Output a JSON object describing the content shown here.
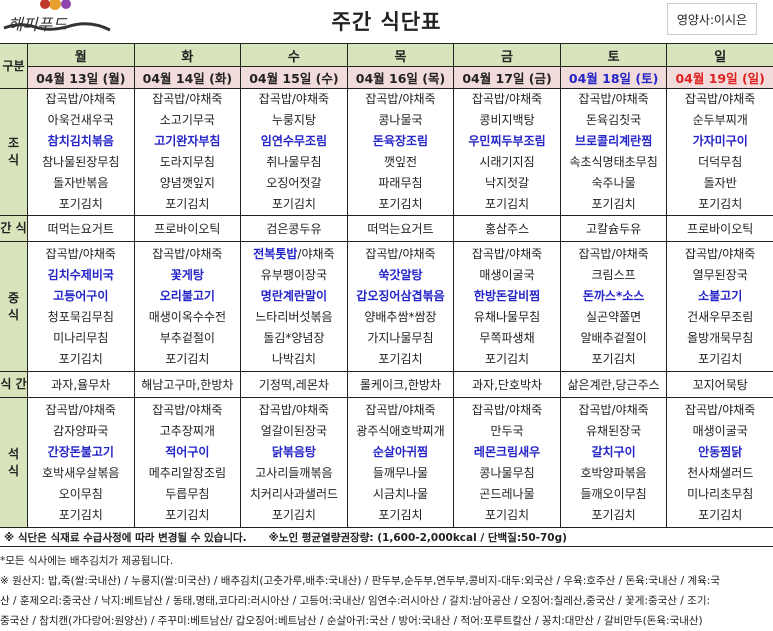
{
  "header": {
    "logo_text": "해피푸드",
    "title": "주간 식단표",
    "dietitian": "영양사:이시은"
  },
  "labels": {
    "category": "구분",
    "breakfast": "조\n식",
    "snack1": "간 식",
    "lunch": "중\n식",
    "snack2": "식 간",
    "dinner": "석\n식"
  },
  "colors": {
    "highlight": "#2525c8",
    "saturday": "#2525c8",
    "sunday": "#e02020",
    "header_bg": "#d8e4bc",
    "date_bg": "#f2dcdb"
  },
  "days": [
    {
      "day": "월",
      "date": "04월 13일 (월)"
    },
    {
      "day": "화",
      "date": "04월 14일 (화)"
    },
    {
      "day": "수",
      "date": "04월 15일 (수)"
    },
    {
      "day": "목",
      "date": "04월 16일 (목)"
    },
    {
      "day": "금",
      "date": "04월 17일 (금)"
    },
    {
      "day": "토",
      "date": "04월 18일 (토)"
    },
    {
      "day": "일",
      "date": "04월 19일 (일)"
    }
  ],
  "breakfast": [
    [
      {
        "text": "잡곡밥/야채죽"
      },
      {
        "text": "아욱건새우국"
      },
      {
        "text": "참치김치볶음",
        "bold": true
      },
      {
        "text": "참나물된장무침"
      },
      {
        "text": "돌자반볶음"
      },
      {
        "text": "포기김치"
      }
    ],
    [
      {
        "text": "잡곡밥/야채죽"
      },
      {
        "text": "소고기무국"
      },
      {
        "text": "고기완자부침",
        "bold": true
      },
      {
        "text": "도라지무침"
      },
      {
        "text": "양념깻잎지"
      },
      {
        "text": "포기김치"
      }
    ],
    [
      {
        "text": "잡곡밥/야채죽"
      },
      {
        "text": "누룽지탕"
      },
      {
        "text": "임연수무조림",
        "bold": true
      },
      {
        "text": "취나물무침"
      },
      {
        "text": "오징어젓갈"
      },
      {
        "text": "포기김치"
      }
    ],
    [
      {
        "text": "잡곡밥/야채죽"
      },
      {
        "text": "콩나물국"
      },
      {
        "text": "돈육장조림",
        "bold": true
      },
      {
        "text": "깻잎전"
      },
      {
        "text": "파래무침"
      },
      {
        "text": "포기김치"
      }
    ],
    [
      {
        "text": "잡곡밥/야채죽"
      },
      {
        "text": "콩비지백탕"
      },
      {
        "text": "우민찌두부조림",
        "bold": true
      },
      {
        "text": "시래기지짐"
      },
      {
        "text": "낙지젓갈"
      },
      {
        "text": "포기김치"
      }
    ],
    [
      {
        "text": "잡곡밥/야채죽"
      },
      {
        "text": "돈육김칫국"
      },
      {
        "text": "브로콜리계란찜",
        "bold": true
      },
      {
        "text": "속초식명태초무침"
      },
      {
        "text": "숙주나물"
      },
      {
        "text": "포기김치"
      }
    ],
    [
      {
        "text": "잡곡밥/야채죽"
      },
      {
        "text": "순두부찌개"
      },
      {
        "text": "가자미구이",
        "bold": true
      },
      {
        "text": "더덕무침"
      },
      {
        "text": "돌자반"
      },
      {
        "text": "포기김치"
      }
    ]
  ],
  "snack1": [
    "떠먹는요거트",
    "프로바이오틱",
    "검은콩두유",
    "떠먹는요거트",
    "홍삼주스",
    "고칼슘두유",
    "프로바이오틱"
  ],
  "lunch": [
    [
      {
        "text": "잡곡밥/야채죽"
      },
      {
        "text": "김치수제비국",
        "bold": true
      },
      {
        "text": "고등어구이",
        "bold": true
      },
      {
        "text": "청포묵김무침"
      },
      {
        "text": "미나리무침"
      },
      {
        "text": "포기김치"
      }
    ],
    [
      {
        "text": "잡곡밥/야채죽"
      },
      {
        "text": "꽃게탕",
        "bold": true
      },
      {
        "text": "오리불고기",
        "bold": true
      },
      {
        "text": "매생이옥수수전"
      },
      {
        "text": "부추겉절이"
      },
      {
        "text": "포기김치"
      }
    ],
    [
      {
        "text": "전복톳밥",
        "bold": true,
        "suffix": "/야채죽"
      },
      {
        "text": "유부팽이장국"
      },
      {
        "text": "명란계란말이",
        "bold": true
      },
      {
        "text": "느타리버섯볶음"
      },
      {
        "text": "돌김*양념장"
      },
      {
        "text": "나박김치"
      }
    ],
    [
      {
        "text": "잡곡밥/야채죽"
      },
      {
        "text": "쑥갓알탕",
        "bold": true
      },
      {
        "text": "갑오징어삼겹볶음",
        "bold": true
      },
      {
        "text": "양배추쌈*쌈장"
      },
      {
        "text": "가지나물무침"
      },
      {
        "text": "포기김치"
      }
    ],
    [
      {
        "text": "잡곡밥/야채죽"
      },
      {
        "text": "매생이굴국"
      },
      {
        "text": "한방돈갈비찜",
        "bold": true
      },
      {
        "text": "유채나물무침"
      },
      {
        "text": "무쪽파생채"
      },
      {
        "text": "포기김치"
      }
    ],
    [
      {
        "text": "잡곡밥/야채죽"
      },
      {
        "text": "크림스프"
      },
      {
        "text": "돈까스*소스",
        "bold": true
      },
      {
        "text": "실곤약쫄면"
      },
      {
        "text": "알배추겉절이"
      },
      {
        "text": "포기김치"
      }
    ],
    [
      {
        "text": "잡곡밥/야채죽"
      },
      {
        "text": "열무된장국"
      },
      {
        "text": "소불고기",
        "bold": true
      },
      {
        "text": "건새우무조림"
      },
      {
        "text": "올방개묵무침"
      },
      {
        "text": "포기김치"
      }
    ]
  ],
  "snack2": [
    "과자,율무차",
    "해남고구마,한방차",
    "기정떡,레몬차",
    "롤케이크,한방차",
    "과자,단호박차",
    "삶은계란,당근주스",
    "꼬지어묵탕"
  ],
  "dinner": [
    [
      {
        "text": "잡곡밥/야채죽"
      },
      {
        "text": "감자양파국"
      },
      {
        "text": "간장돈불고기",
        "bold": true
      },
      {
        "text": "호박새우살볶음"
      },
      {
        "text": "오이무침"
      },
      {
        "text": "포기김치"
      }
    ],
    [
      {
        "text": "잡곡밥/야채죽"
      },
      {
        "text": "고추장찌개"
      },
      {
        "text": "적어구이",
        "bold": true
      },
      {
        "text": "메추리알장조림"
      },
      {
        "text": "두릅무침"
      },
      {
        "text": "포기김치"
      }
    ],
    [
      {
        "text": "잡곡밥/야채죽"
      },
      {
        "text": "얼갈이된장국"
      },
      {
        "text": "닭볶음탕",
        "bold": true
      },
      {
        "text": "고사리들깨볶음"
      },
      {
        "text": "치커리사과샐러드"
      },
      {
        "text": "포기김치"
      }
    ],
    [
      {
        "text": "잡곡밥/야채죽"
      },
      {
        "text": "광주식애호박찌개"
      },
      {
        "text": "순살아귀찜",
        "bold": true
      },
      {
        "text": "들깨무나물"
      },
      {
        "text": "시금치나물"
      },
      {
        "text": "포기김치"
      }
    ],
    [
      {
        "text": "잡곡밥/야채죽"
      },
      {
        "text": "만두국"
      },
      {
        "text": "레몬크림새우",
        "bold": true
      },
      {
        "text": "콩나물무침"
      },
      {
        "text": "곤드레나물"
      },
      {
        "text": "포기김치"
      }
    ],
    [
      {
        "text": "잡곡밥/야채죽"
      },
      {
        "text": "유채된장국"
      },
      {
        "text": "갈치구이",
        "bold": true
      },
      {
        "text": "호박양파볶음"
      },
      {
        "text": "들깨오이무침"
      },
      {
        "text": "포기김치"
      }
    ],
    [
      {
        "text": "잡곡밥/야채죽"
      },
      {
        "text": "매생이굴국"
      },
      {
        "text": "안동찜닭",
        "bold": true
      },
      {
        "text": "천사채샐러드"
      },
      {
        "text": "미나리초무침"
      },
      {
        "text": "포기김치"
      }
    ]
  ],
  "note": "※ 식단은 식재료 수급사정에 따라 변경될 수 있습니다.      ※노인 평균열량권장량: (1,600-2,000kcal / 단백질:50-70g)",
  "footnotes": [
    "*모든 식사에는 배추김치가 제공됩니다.",
    "※ 원산지: 밥,죽(쌀:국내산) / 누룽지(쌀:미국산) / 배추김치(고춧가루,배추:국내산) / 판두부,순두부,연두부,콩비지-대두:외국산 / 우육:호주산 / 돈육:국내산 / 계육:국",
    "산 / 훈제오리:중국산 / 낙지:베트남산 / 동태,명태,코다리:러시아산 / 고등어:국내산/ 임연수:러시아산 / 갈치:남아공산 / 오징어:칠레산,중국산 / 꽃게:중국산 / 조기:",
    "중국산 / 참치캔(가다랑어:원양산) / 주꾸미:베트남산/ 갑오징어:베트남산 / 순살아귀:국산 / 방어:국내산 / 적어:포루트칼산 / 꽁치:대만산 / 갈비만두(돈육:국내산)"
  ]
}
